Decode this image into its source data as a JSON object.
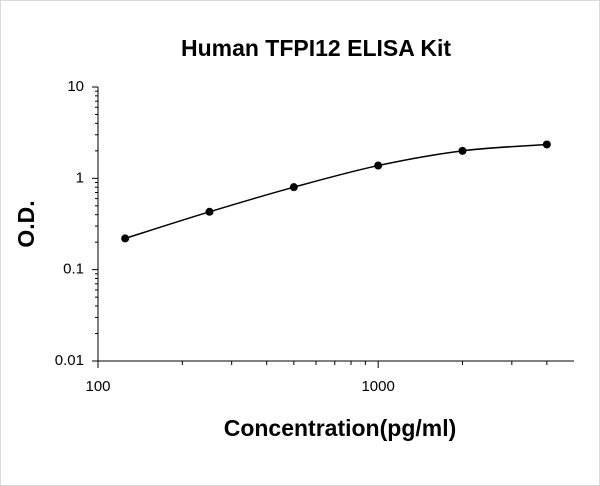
{
  "chart_data": {
    "type": "line",
    "title": "Human TFPI12 ELISA Kit",
    "x_label": "Concentration(pg/ml)",
    "y_label": "O.D.",
    "x": [
      125,
      250,
      500,
      1000,
      2000,
      4000
    ],
    "series": [
      {
        "name": "O.D.",
        "color": "#000000",
        "values": [
          0.22,
          0.43,
          0.8,
          1.38,
          2.0,
          2.35
        ]
      }
    ],
    "xlim": [
      100,
      5000
    ],
    "xticks": [
      100,
      1000
    ],
    "xscale": "log",
    "ylim": [
      0.01,
      10
    ],
    "yticks": [
      0.01,
      0.1,
      1,
      10
    ],
    "yscale": "log",
    "grid": false
  }
}
